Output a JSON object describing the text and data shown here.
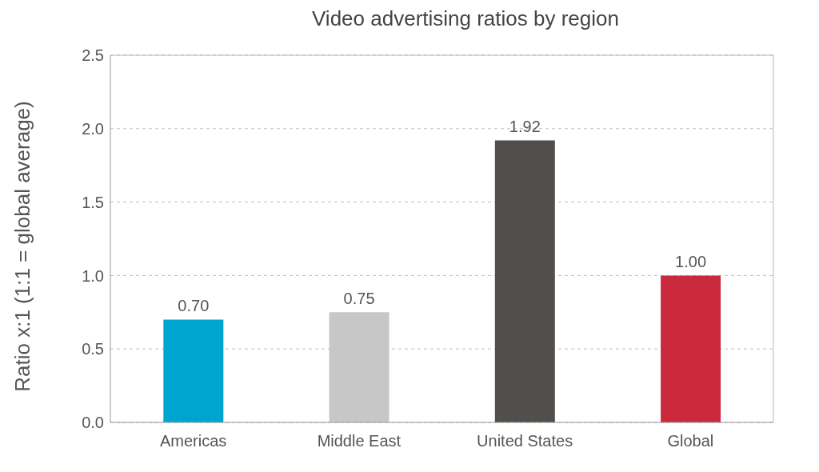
{
  "chart_data": {
    "type": "bar",
    "title": "Video advertising ratios by region",
    "ylabel": "Ratio x:1 (1:1 = global average)",
    "categories": [
      "Americas",
      "Middle East",
      "United States",
      "Global"
    ],
    "values": [
      0.7,
      0.75,
      1.92,
      1.0
    ],
    "colors": [
      "#00a5cf",
      "#c8c7c7",
      "#524e4c",
      "#cb2a3c"
    ],
    "value_labels": [
      "0.70",
      "0.75",
      "1.92",
      "1.00"
    ],
    "ylim": [
      0,
      2.5
    ],
    "yticks": [
      {
        "value": 0,
        "label": "0.0"
      },
      {
        "value": 0.5,
        "label": "0.5"
      },
      {
        "value": 1,
        "label": "1.0"
      },
      {
        "value": 1.5,
        "label": "1.5"
      },
      {
        "value": 2,
        "label": "2.0"
      },
      {
        "value": 2.5,
        "label": "2.5"
      }
    ],
    "grid": "y"
  }
}
